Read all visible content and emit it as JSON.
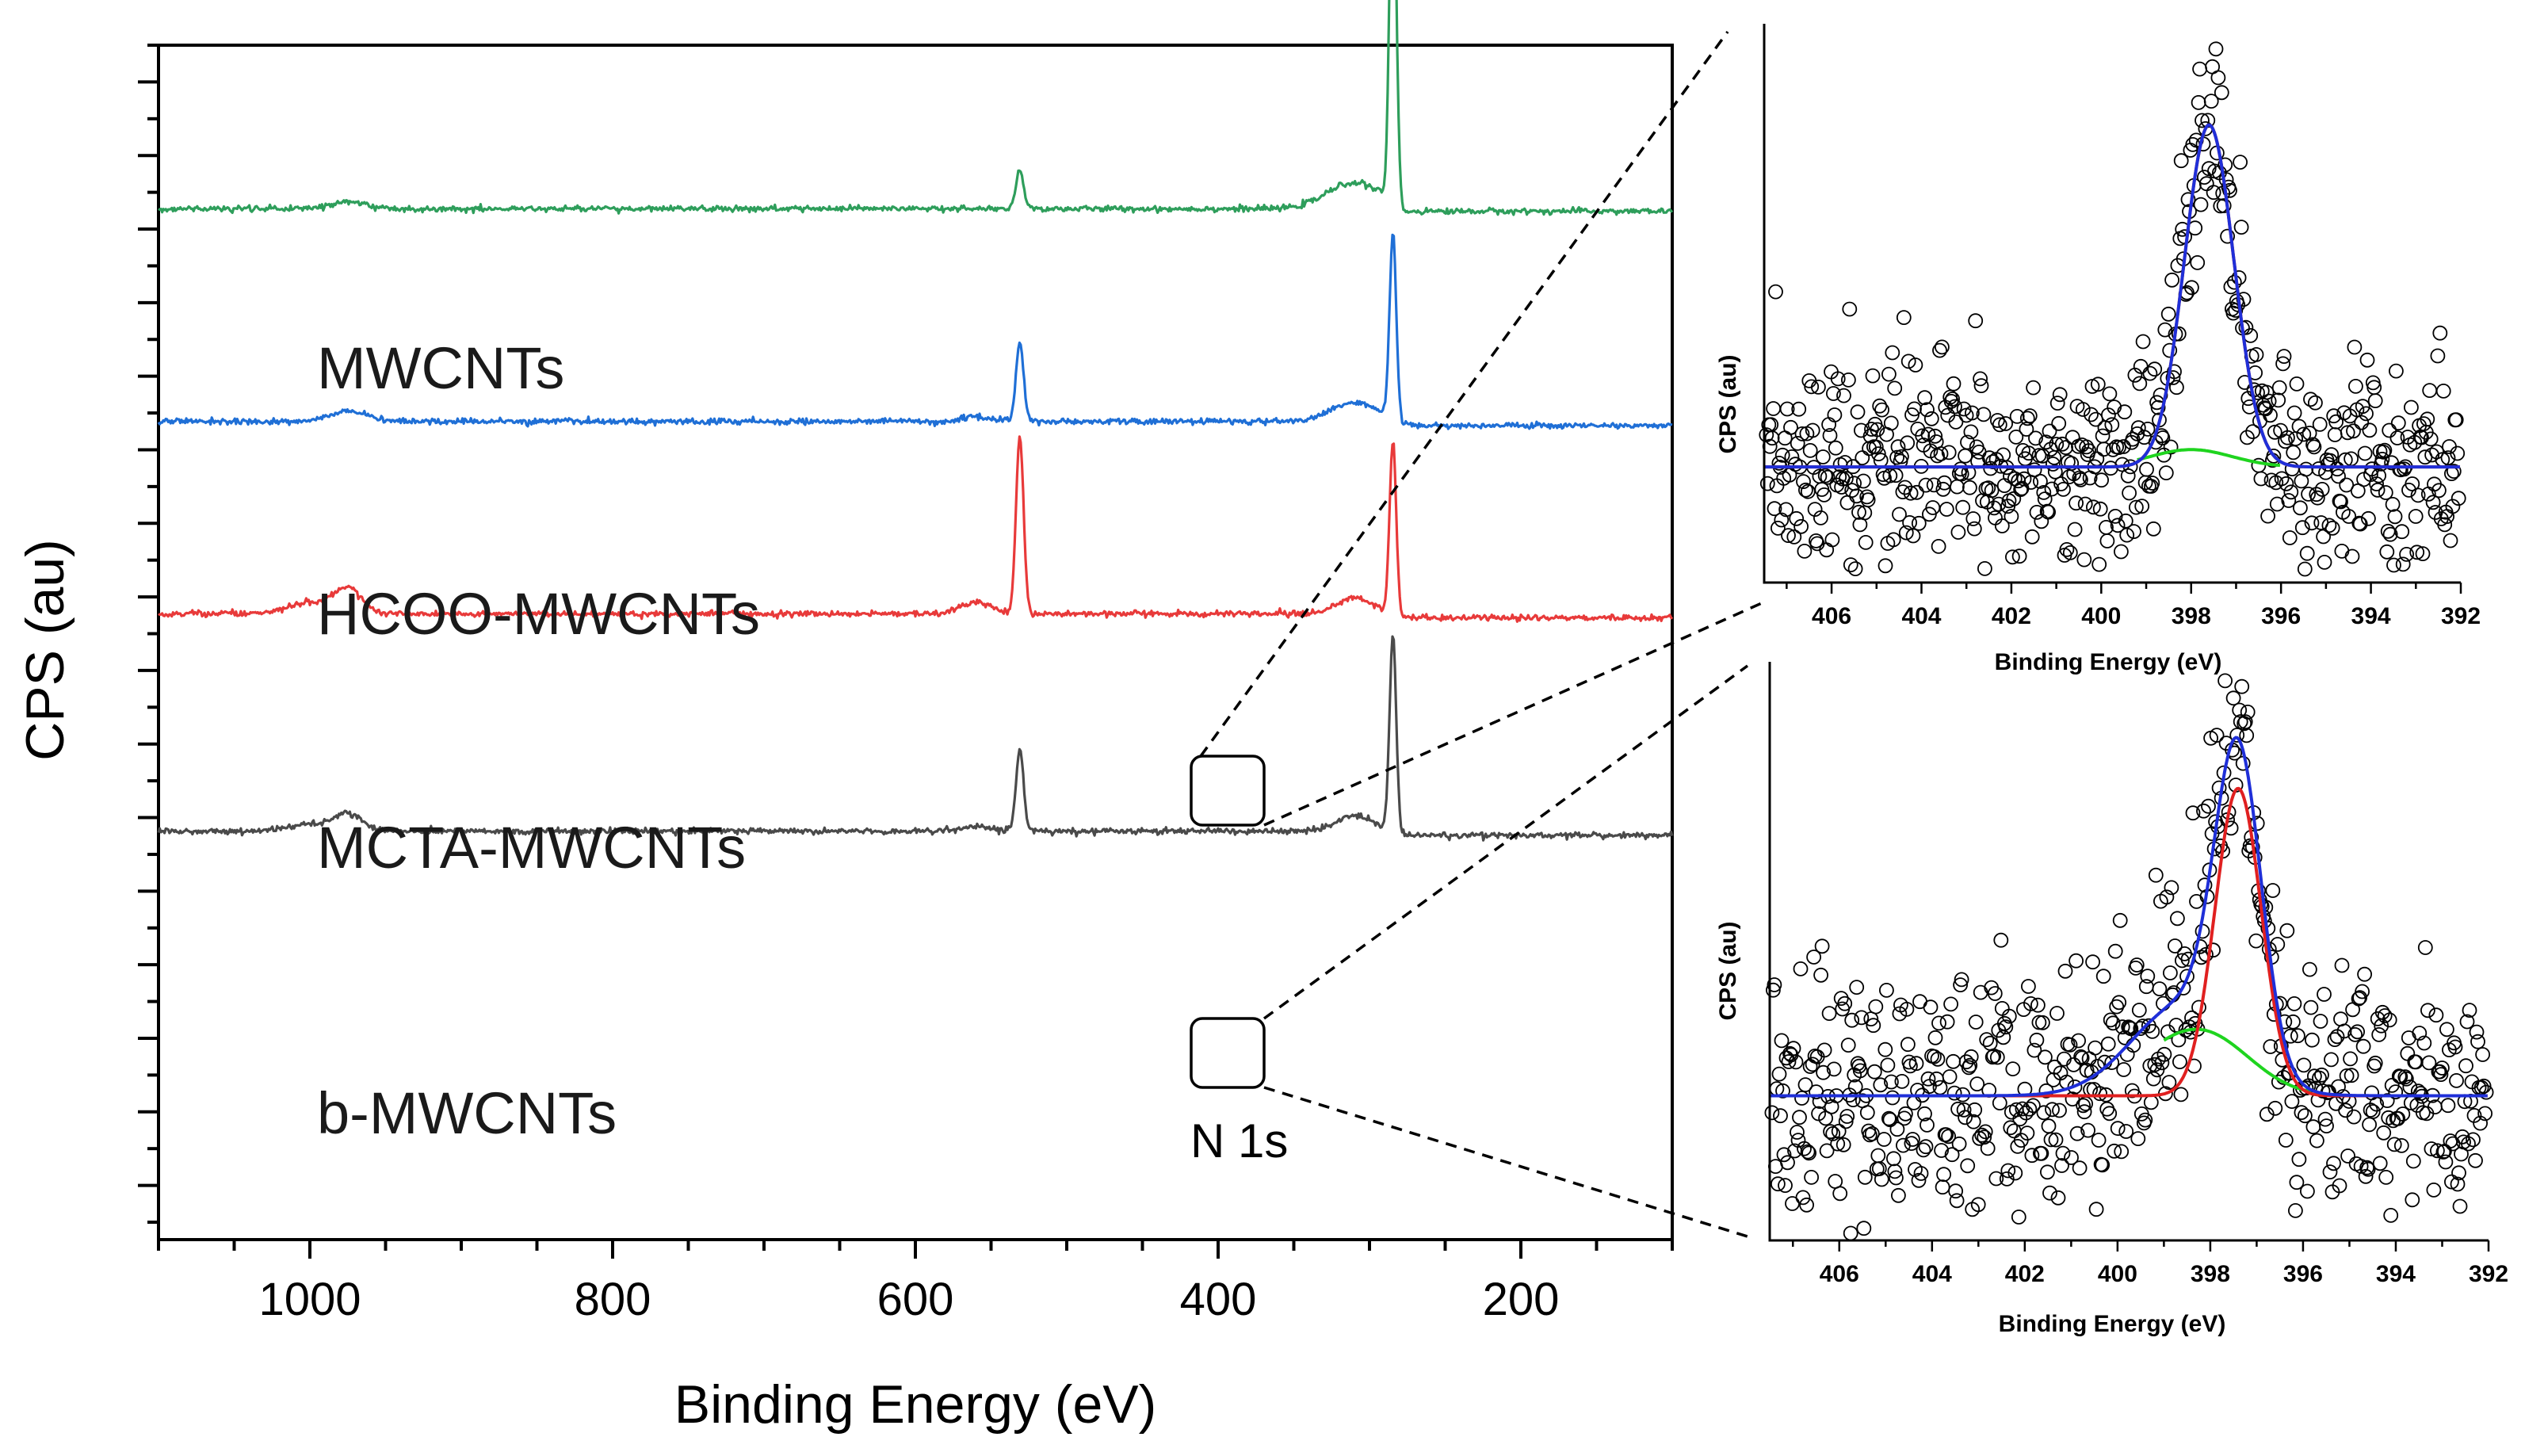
{
  "chart_data": [
    {
      "id": "survey",
      "type": "line",
      "title": "",
      "xlabel": "Binding Energy (eV)",
      "ylabel": "CPS (au)",
      "xlim": [
        1100,
        100
      ],
      "x_reversed": true,
      "xticks": [
        1000,
        800,
        600,
        400,
        200
      ],
      "xtick_labels": [
        "1000",
        "800",
        "600",
        "400",
        "200"
      ],
      "x_minor_step": 50,
      "ylim": [
        0,
        100
      ],
      "y_tick_count": 33,
      "y_tick_labels_shown": false,
      "series": [
        {
          "name": "MWCNTs",
          "color": "#2e9e5b",
          "baseline": 86.3,
          "peaks": [
            {
              "center": 975,
              "height": 0.6,
              "width": 12
            },
            {
              "center": 531,
              "height": 3.2,
              "width": 2.5
            },
            {
              "center": 310,
              "height": 2.2,
              "width": 18
            },
            {
              "center": 284.5,
              "height": 31.0,
              "width": 2.2
            }
          ],
          "drop_above": 278
        },
        {
          "name": "HCOO-MWCNTs",
          "color": "#1f6fd6",
          "baseline": 68.5,
          "peaks": [
            {
              "center": 975,
              "height": 0.9,
              "width": 12
            },
            {
              "center": 560,
              "height": 0.4,
              "width": 10
            },
            {
              "center": 531,
              "height": 6.5,
              "width": 2.5
            },
            {
              "center": 310,
              "height": 1.6,
              "width": 15
            },
            {
              "center": 284.5,
              "height": 15.5,
              "width": 2.2
            }
          ],
          "drop_above": 0
        },
        {
          "name": "MCTA-MWCNTs",
          "color": "#e83a3a",
          "baseline": 52.4,
          "peaks": [
            {
              "center": 1000,
              "height": 0.9,
              "width": 14
            },
            {
              "center": 975,
              "height": 2.1,
              "width": 9
            },
            {
              "center": 560,
              "height": 1.0,
              "width": 10
            },
            {
              "center": 531,
              "height": 14.8,
              "width": 2.5
            },
            {
              "center": 310,
              "height": 1.3,
              "width": 12
            },
            {
              "center": 284.5,
              "height": 14.3,
              "width": 2.2
            }
          ],
          "drop_above": 0
        },
        {
          "name": "b-MWCNTs",
          "color": "#4a4a4a",
          "baseline": 34.2,
          "peaks": [
            {
              "center": 1000,
              "height": 0.6,
              "width": 14
            },
            {
              "center": 975,
              "height": 1.4,
              "width": 9
            },
            {
              "center": 560,
              "height": 0.4,
              "width": 10
            },
            {
              "center": 531,
              "height": 6.8,
              "width": 2.5
            },
            {
              "center": 310,
              "height": 1.3,
              "width": 12
            },
            {
              "center": 284.5,
              "height": 16.3,
              "width": 2.2
            }
          ],
          "drop_above": 0
        }
      ],
      "annotations": [
        {
          "text": "N 1s",
          "x": 400,
          "y": 30
        },
        {
          "text": "zoom-box",
          "x_range": [
            425,
            380
          ],
          "y_range": [
            54.5,
            49.5
          ]
        },
        {
          "text": "zoom-box",
          "x_range": [
            425,
            380
          ],
          "y_range": [
            36.5,
            31.5
          ]
        }
      ]
    },
    {
      "id": "inset-mcta",
      "type": "scatter",
      "title": "",
      "xlabel": "Binding Energy (eV)",
      "ylabel": "CPS (au)",
      "xlim": [
        407.5,
        392
      ],
      "x_reversed": true,
      "xticks": [
        406,
        404,
        402,
        400,
        398,
        396,
        394,
        392
      ],
      "xtick_labels": [
        "406",
        "404",
        "402",
        "400",
        "398",
        "396",
        "394",
        "392"
      ],
      "ylim": [
        -1.2,
        4.6
      ],
      "background": 0.0,
      "points_count": 600,
      "fit": {
        "envelope": {
          "name": "fit envelope",
          "color": "#1f2fd8"
        },
        "component": {
          "name": "N 1s component",
          "color": "#e02020",
          "center": 397.6,
          "height": 3.55,
          "sigma": 0.55
        },
        "background_curve": {
          "name": "background",
          "color": "#1fd41f",
          "left_level": 0.0,
          "right_level": 0.0
        }
      }
    },
    {
      "id": "inset-b",
      "type": "scatter",
      "title": "",
      "xlabel": "Binding Energy (eV)",
      "ylabel": "CPS (au)",
      "xlim": [
        407.5,
        392
      ],
      "x_reversed": true,
      "xticks": [
        406,
        404,
        402,
        400,
        398,
        396,
        394,
        392
      ],
      "xtick_labels": [
        "406",
        "404",
        "402",
        "400",
        "398",
        "396",
        "394",
        "392"
      ],
      "ylim": [
        -1.2,
        3.6
      ],
      "background": 0.0,
      "points_count": 600,
      "fit": {
        "envelope": {
          "name": "fit envelope",
          "color": "#1f2fd8"
        },
        "component": {
          "name": "N 1s component",
          "color": "#e02020",
          "center": 397.4,
          "height": 2.55,
          "sigma": 0.5
        },
        "component2": {
          "name": "broad component",
          "color": "#1f2fd8",
          "center": 398.6,
          "height": 0.75,
          "sigma": 1.1
        },
        "background_curve": {
          "name": "background",
          "color": "#1fd41f",
          "left_level": 0.0,
          "right_level": 0.0
        }
      }
    }
  ]
}
